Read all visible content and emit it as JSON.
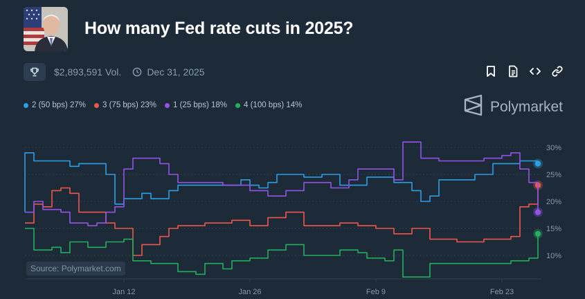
{
  "market": {
    "title": "How many Fed rate cuts in 2025?",
    "volume": "$2,893,591 Vol.",
    "end_date": "Dec 31, 2025"
  },
  "icons": {
    "trophy": "trophy-icon",
    "clock": "clock-icon",
    "bookmark": "bookmark-icon",
    "document": "document-icon",
    "embed": "embed-code-icon",
    "link": "link-icon",
    "brand": "polymarket-logo-icon"
  },
  "brand": {
    "name": "Polymarket"
  },
  "source": "Source: Polymarket.com",
  "colors": {
    "background": "#1d2b39",
    "grid": "#324150",
    "axis_text": "#8a99a8"
  },
  "legend": [
    {
      "label": "2 (50 bps) 27%",
      "color": "#2e9ee6"
    },
    {
      "label": "3 (75 bps) 23%",
      "color": "#f0564c"
    },
    {
      "label": "1 (25 bps) 18%",
      "color": "#9553e6"
    },
    {
      "label": "4 (100 bps) 14%",
      "color": "#27ad60"
    }
  ],
  "chart_data": {
    "type": "line",
    "x_dates": [
      "2025-01-01",
      "2025-02-27"
    ],
    "x_ticks": [
      {
        "label": "Jan 12",
        "date": "2025-01-12"
      },
      {
        "label": "Jan 26",
        "date": "2025-01-26"
      },
      {
        "label": "Feb 9",
        "date": "2025-02-09"
      },
      {
        "label": "Feb 23",
        "date": "2025-02-23"
      }
    ],
    "y_ticks": [
      "30%",
      "25%",
      "20%",
      "15%",
      "10%"
    ],
    "y_tick_values": [
      30,
      25,
      20,
      15,
      10
    ],
    "ylim": [
      5.5,
      30
    ],
    "y_axis": "right",
    "grid": "horizontal-dashed",
    "series": [
      {
        "name": "2 (50 bps)",
        "color": "#2e9ee6",
        "last": 27,
        "points": [
          [
            "2025-01-01",
            18
          ],
          [
            "2025-01-01",
            29
          ],
          [
            "2025-01-02",
            27.5
          ],
          [
            "2025-01-05",
            27.5
          ],
          [
            "2025-01-06",
            26.5
          ],
          [
            "2025-01-07",
            27
          ],
          [
            "2025-01-09",
            27
          ],
          [
            "2025-01-10",
            25
          ],
          [
            "2025-01-11",
            24
          ],
          [
            "2025-01-11",
            19.5
          ],
          [
            "2025-01-12",
            20.5
          ],
          [
            "2025-01-14",
            21.5
          ],
          [
            "2025-01-15",
            20.5
          ],
          [
            "2025-01-17",
            22
          ],
          [
            "2025-01-18",
            23
          ],
          [
            "2025-01-24",
            23
          ],
          [
            "2025-01-25",
            24
          ],
          [
            "2025-01-26",
            23
          ],
          [
            "2025-01-27",
            22.5
          ],
          [
            "2025-01-28",
            23.5
          ],
          [
            "2025-01-29",
            25
          ],
          [
            "2025-02-01",
            24.5
          ],
          [
            "2025-02-03",
            25
          ],
          [
            "2025-02-05",
            23
          ],
          [
            "2025-02-07",
            23
          ],
          [
            "2025-02-08",
            24.5
          ],
          [
            "2025-02-11",
            23.5
          ],
          [
            "2025-02-13",
            22
          ],
          [
            "2025-02-14",
            20
          ],
          [
            "2025-02-15",
            21
          ],
          [
            "2025-02-16",
            24
          ],
          [
            "2025-02-18",
            24
          ],
          [
            "2025-02-20",
            25
          ],
          [
            "2025-02-22",
            27
          ],
          [
            "2025-02-25",
            27.5
          ],
          [
            "2025-02-27",
            27
          ]
        ]
      },
      {
        "name": "3 (75 bps)",
        "color": "#f0564c",
        "last": 23,
        "points": [
          [
            "2025-01-01",
            16
          ],
          [
            "2025-01-02",
            19.5
          ],
          [
            "2025-01-03",
            19
          ],
          [
            "2025-01-04",
            22
          ],
          [
            "2025-01-05",
            22.5
          ],
          [
            "2025-01-06",
            21.5
          ],
          [
            "2025-01-07",
            18
          ],
          [
            "2025-01-09",
            18
          ],
          [
            "2025-01-10",
            16
          ],
          [
            "2025-01-11",
            15
          ],
          [
            "2025-01-13",
            10
          ],
          [
            "2025-01-14",
            12
          ],
          [
            "2025-01-16",
            13.5
          ],
          [
            "2025-01-17",
            15
          ],
          [
            "2025-01-18",
            15.5
          ],
          [
            "2025-01-21",
            16
          ],
          [
            "2025-01-24",
            16.5
          ],
          [
            "2025-01-26",
            15.5
          ],
          [
            "2025-01-28",
            17
          ],
          [
            "2025-01-30",
            18
          ],
          [
            "2025-02-01",
            15.5
          ],
          [
            "2025-02-03",
            15.5
          ],
          [
            "2025-02-05",
            16
          ],
          [
            "2025-02-07",
            15.5
          ],
          [
            "2025-02-09",
            15
          ],
          [
            "2025-02-11",
            14
          ],
          [
            "2025-02-13",
            15
          ],
          [
            "2025-02-15",
            13
          ],
          [
            "2025-02-18",
            12.5
          ],
          [
            "2025-02-21",
            13
          ],
          [
            "2025-02-24",
            13.5
          ],
          [
            "2025-02-25",
            19
          ],
          [
            "2025-02-26",
            19.5
          ],
          [
            "2025-02-27",
            23
          ]
        ]
      },
      {
        "name": "1 (25 bps)",
        "color": "#9553e6",
        "last": 18,
        "points": [
          [
            "2025-01-01",
            18
          ],
          [
            "2025-01-02",
            20
          ],
          [
            "2025-01-03",
            18.5
          ],
          [
            "2025-01-05",
            18
          ],
          [
            "2025-01-06",
            16
          ],
          [
            "2025-01-08",
            15.5
          ],
          [
            "2025-01-09",
            16
          ],
          [
            "2025-01-10",
            18
          ],
          [
            "2025-01-11",
            19
          ],
          [
            "2025-01-12",
            26
          ],
          [
            "2025-01-13",
            28
          ],
          [
            "2025-01-15",
            28
          ],
          [
            "2025-01-16",
            27
          ],
          [
            "2025-01-17",
            25
          ],
          [
            "2025-01-18",
            23.5
          ],
          [
            "2025-01-20",
            23.5
          ],
          [
            "2025-01-23",
            23
          ],
          [
            "2025-01-26",
            22
          ],
          [
            "2025-01-28",
            21
          ],
          [
            "2025-01-30",
            22
          ],
          [
            "2025-02-01",
            23.5
          ],
          [
            "2025-02-04",
            22.5
          ],
          [
            "2025-02-06",
            24
          ],
          [
            "2025-02-07",
            26
          ],
          [
            "2025-02-10",
            26
          ],
          [
            "2025-02-11",
            24
          ],
          [
            "2025-02-12",
            31
          ],
          [
            "2025-02-13",
            31
          ],
          [
            "2025-02-14",
            28
          ],
          [
            "2025-02-16",
            27.5
          ],
          [
            "2025-02-18",
            27.5
          ],
          [
            "2025-02-21",
            28
          ],
          [
            "2025-02-23",
            28.5
          ],
          [
            "2025-02-24",
            29
          ],
          [
            "2025-02-25",
            26
          ],
          [
            "2025-02-26",
            23.5
          ],
          [
            "2025-02-27",
            18
          ]
        ]
      },
      {
        "name": "4 (100 bps)",
        "color": "#27ad60",
        "last": 14,
        "points": [
          [
            "2025-01-01",
            15
          ],
          [
            "2025-01-02",
            11
          ],
          [
            "2025-01-04",
            11.5
          ],
          [
            "2025-01-05",
            10.5
          ],
          [
            "2025-01-06",
            12.5
          ],
          [
            "2025-01-08",
            11.5
          ],
          [
            "2025-01-10",
            12.5
          ],
          [
            "2025-01-12",
            13
          ],
          [
            "2025-01-13",
            9
          ],
          [
            "2025-01-15",
            8.5
          ],
          [
            "2025-01-18",
            7
          ],
          [
            "2025-01-20",
            6.5
          ],
          [
            "2025-01-21",
            8.5
          ],
          [
            "2025-01-23",
            7.5
          ],
          [
            "2025-01-24",
            9
          ],
          [
            "2025-01-26",
            9.5
          ],
          [
            "2025-01-28",
            11
          ],
          [
            "2025-01-30",
            12
          ],
          [
            "2025-02-01",
            10
          ],
          [
            "2025-02-03",
            10
          ],
          [
            "2025-02-05",
            11
          ],
          [
            "2025-02-07",
            10.5
          ],
          [
            "2025-02-08",
            9.5
          ],
          [
            "2025-02-09",
            9.5
          ],
          [
            "2025-02-10",
            9
          ],
          [
            "2025-02-11",
            11
          ],
          [
            "2025-02-12",
            6
          ],
          [
            "2025-02-14",
            6
          ],
          [
            "2025-02-15",
            8.5
          ],
          [
            "2025-02-21",
            8.5
          ],
          [
            "2025-02-24",
            9
          ],
          [
            "2025-02-26",
            9.5
          ],
          [
            "2025-02-27",
            14
          ]
        ]
      }
    ]
  }
}
